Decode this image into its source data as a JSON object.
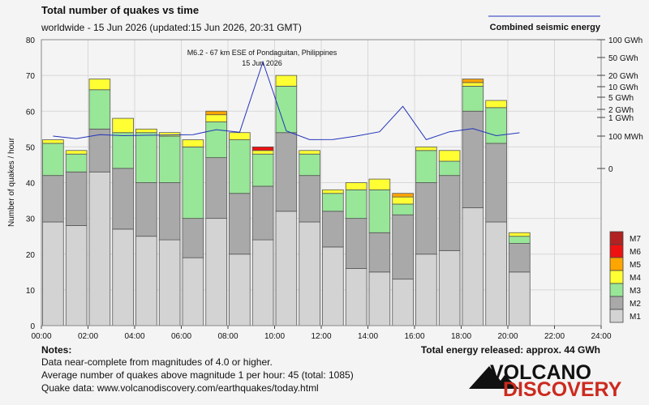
{
  "title": "Total number of quakes vs time",
  "subtitle": "worldwide - 15 Jun 2026 (updated:15 Jun 2026, 20:31 GMT)",
  "energy_legend_label": "Combined seismic energy",
  "annotation": {
    "line1": "M6.2 - 67 km ESE of Pondaguitan, Philippines",
    "line2": "15 Jun 2026"
  },
  "notes": {
    "heading": "Notes:",
    "line1": "Data near-complete from magnitudes of 4.0 or higher.",
    "line2": "Average number of quakes above magnitude 1 per hour: 45 (total: 1085)",
    "line3": "Quake data: www.volcanodiscovery.com/earthquakes/today.html"
  },
  "total_energy": "Total energy released: approx. 44 GWh",
  "logo": {
    "line1": "VOLCANO",
    "line2": "DISCOVERY"
  },
  "colors": {
    "M1": "#d3d3d3",
    "M2": "#a9a9a9",
    "M3": "#98e698",
    "M4": "#ffff33",
    "M5": "#ffa500",
    "M6": "#ee1111",
    "M7": "#b22222",
    "energy_line": "#2233bb"
  },
  "chart_data": {
    "type": "bar",
    "stacked": true,
    "xlabel": "",
    "ylabel": "Number of quakes / hour",
    "ylim": [
      0,
      80
    ],
    "y_ticks": [
      0,
      10,
      20,
      30,
      40,
      50,
      60,
      70,
      80
    ],
    "x_range_hours": [
      0,
      24
    ],
    "x_tick_labels": [
      "00:00",
      "02:00",
      "04:00",
      "06:00",
      "08:00",
      "10:00",
      "12:00",
      "14:00",
      "16:00",
      "18:00",
      "20:00",
      "22:00",
      "24:00"
    ],
    "grid": true,
    "legend": "right",
    "categories": [
      "00",
      "01",
      "02",
      "03",
      "04",
      "05",
      "06",
      "07",
      "08",
      "09",
      "10",
      "11",
      "12",
      "13",
      "14",
      "15",
      "16",
      "17",
      "18",
      "19",
      "20"
    ],
    "series": [
      {
        "name": "M1",
        "values": [
          29,
          28,
          43,
          27,
          25,
          24,
          19,
          30,
          20,
          24,
          32,
          29,
          22,
          16,
          15,
          13,
          20,
          21,
          33,
          29,
          15
        ]
      },
      {
        "name": "M2",
        "values": [
          13,
          15,
          12,
          17,
          15,
          16,
          11,
          17,
          17,
          15,
          22,
          13,
          10,
          14,
          11,
          18,
          20,
          21,
          27,
          22,
          8
        ]
      },
      {
        "name": "M3",
        "values": [
          9,
          5,
          11,
          10,
          14,
          13,
          20,
          10,
          15,
          9,
          13,
          6,
          5,
          8,
          12,
          3,
          9,
          4,
          7,
          10,
          2
        ]
      },
      {
        "name": "M4",
        "values": [
          1,
          1,
          3,
          4,
          1,
          1,
          2,
          2,
          2,
          1,
          3,
          1,
          1,
          2,
          3,
          2,
          1,
          3,
          1,
          2,
          1
        ]
      },
      {
        "name": "M5",
        "values": [
          0,
          0,
          0,
          0,
          0,
          0,
          0,
          1,
          0,
          0,
          0,
          0,
          0,
          0,
          0,
          1,
          0,
          0,
          1,
          0,
          0
        ]
      },
      {
        "name": "M6",
        "values": [
          0,
          0,
          0,
          0,
          0,
          0,
          0,
          0,
          0,
          1,
          0,
          0,
          0,
          0,
          0,
          0,
          0,
          0,
          0,
          0,
          0
        ]
      },
      {
        "name": "M7",
        "values": [
          0,
          0,
          0,
          0,
          0,
          0,
          0,
          0,
          0,
          0,
          0,
          0,
          0,
          0,
          0,
          0,
          0,
          0,
          0,
          0,
          0
        ]
      }
    ],
    "legend_entries": [
      "M7",
      "M6",
      "M5",
      "M4",
      "M3",
      "M2",
      "M1"
    ],
    "energy": {
      "name": "Combined seismic energy",
      "scale": "log",
      "tick_labels": [
        "100 GWh",
        "50 GWh",
        "20 GWh",
        "10 GWh",
        "5 GWh",
        "2 GWh",
        "1 GWh",
        "100 MWh",
        "0"
      ],
      "tick_values_mwh": [
        100000,
        50000,
        20000,
        10000,
        5000,
        2000,
        1000,
        100,
        1
      ],
      "x_hours": [
        0.5,
        1.5,
        2.5,
        3.5,
        4.5,
        5.5,
        6.5,
        7.5,
        8.5,
        9.5,
        10.5,
        11.5,
        12.5,
        13.5,
        14.5,
        15.5,
        16.5,
        17.5,
        18.5,
        19.5,
        20.5
      ],
      "values_mwh": [
        100,
        70,
        120,
        105,
        110,
        115,
        120,
        220,
        160,
        40000,
        190,
        60,
        62,
        100,
        170,
        2500,
        60,
        170,
        250,
        105,
        150
      ]
    }
  }
}
